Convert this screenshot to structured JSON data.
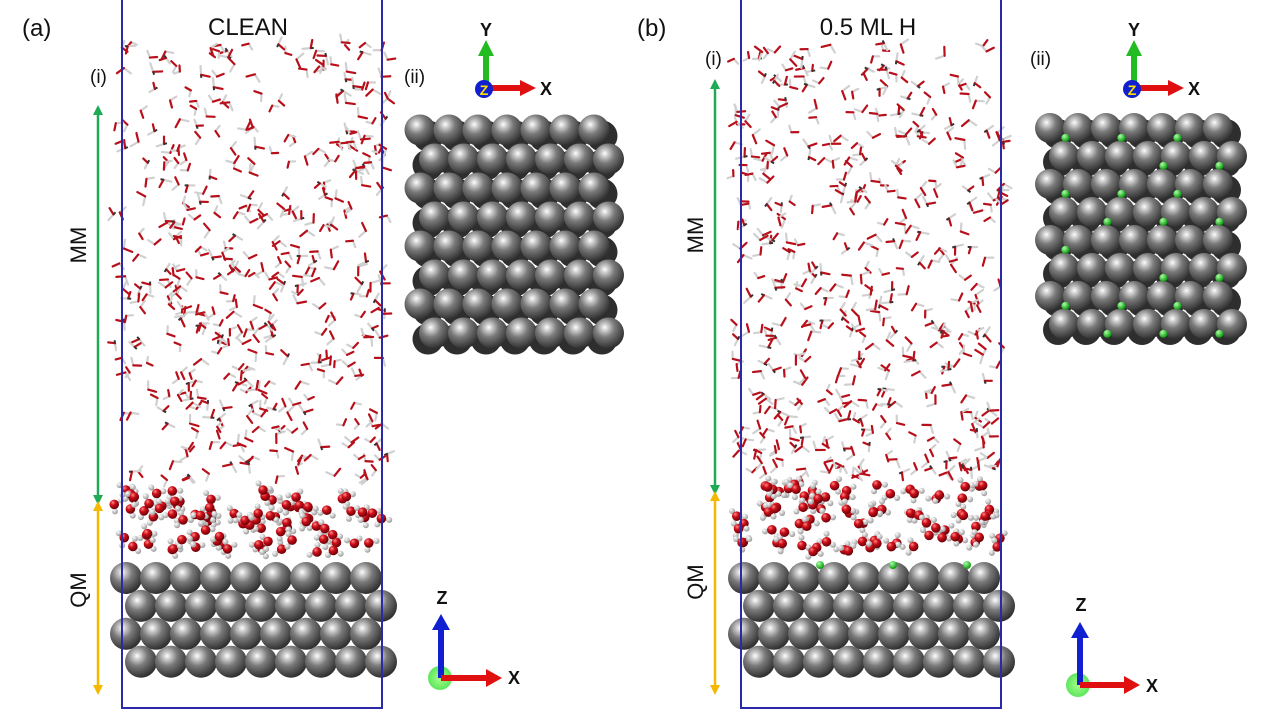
{
  "panels": [
    {
      "id": "a",
      "panel_label": "(a)",
      "title": "CLEAN",
      "sub_i": "(i)",
      "sub_ii": "(ii)",
      "mm_label": "MM",
      "qm_label": "QM",
      "axes_top": {
        "y": "Y",
        "z": "Z",
        "x": "X"
      },
      "axes_bottom": {
        "z": "Z",
        "x": "X"
      },
      "hydrogen_coverage": false
    },
    {
      "id": "b",
      "panel_label": "(b)",
      "title": "0.5 ML H",
      "sub_i": "(i)",
      "sub_ii": "(ii)",
      "mm_label": "MM",
      "qm_label": "QM",
      "axes_top": {
        "y": "Y",
        "z": "Z",
        "x": "X"
      },
      "axes_bottom": {
        "z": "Z",
        "x": "X"
      },
      "hydrogen_coverage": true
    }
  ],
  "colors": {
    "box": "#2a2aa8",
    "mm_arrow": "#1faa55",
    "qm_arrow": "#f5b800",
    "metal_atom": "#6e6e6e",
    "oxygen": "#c8101a",
    "hydrogen": "#e8e8e8",
    "adsorbed_h": "#22cc22",
    "axis_x": "#e01010",
    "axis_y": "#22bb22",
    "axis_z": "#1020d0"
  }
}
